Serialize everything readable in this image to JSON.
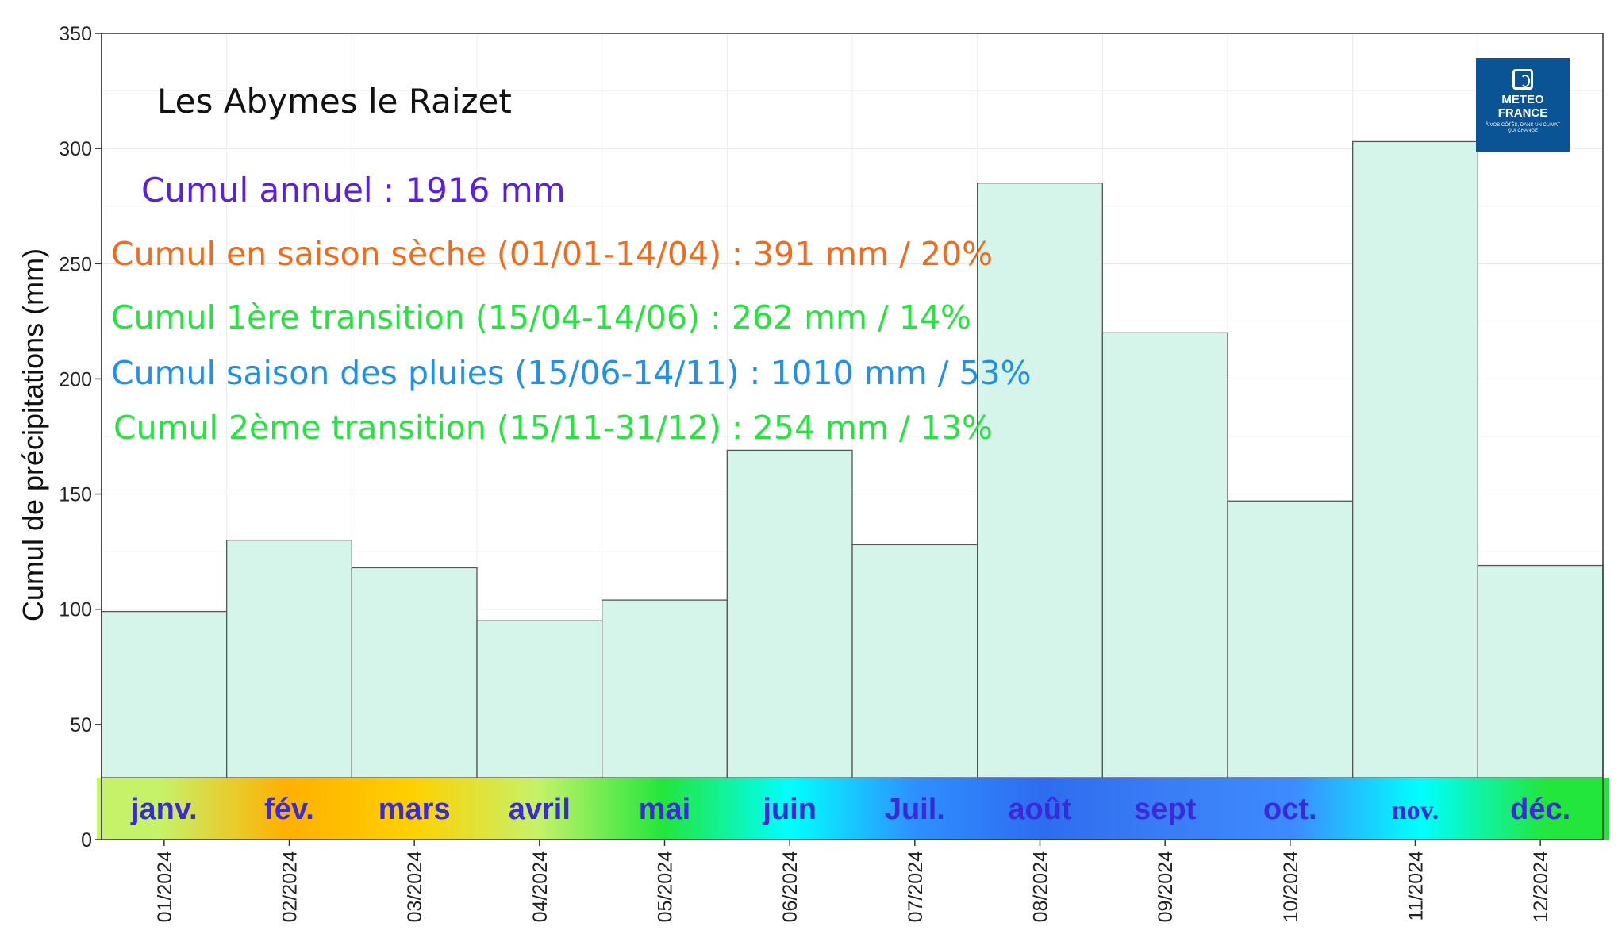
{
  "chart_data": {
    "type": "bar",
    "title": "Les Abymes le Raizet",
    "ylabel": "Cumul de précipitations (mm)",
    "xlabel": "",
    "ylim": [
      0,
      350
    ],
    "yticks": [
      0,
      50,
      100,
      150,
      200,
      250,
      300,
      350
    ],
    "grid": true,
    "categories": [
      "01/2024",
      "02/2024",
      "03/2024",
      "04/2024",
      "05/2024",
      "06/2024",
      "07/2024",
      "08/2024",
      "09/2024",
      "10/2024",
      "11/2024",
      "12/2024"
    ],
    "values": [
      99,
      130,
      118,
      95,
      104,
      169,
      128,
      285,
      220,
      147,
      303,
      119
    ],
    "bar_color": "#d6f5ea",
    "month_band": {
      "labels": [
        "janv.",
        "fév.",
        "mars",
        "avril",
        "mai",
        "juin",
        "Juil.",
        "août",
        "sept",
        "oct.",
        "nov.",
        "déc."
      ],
      "label_color": "#3a2bd6",
      "gradient_colors": [
        "#c6f26a",
        "#ffb000",
        "#ffd000",
        "#c6f26a",
        "#22e63c",
        "#00ffff",
        "#2e8fff",
        "#2e6cf0",
        "#3a7df5",
        "#3d8bff",
        "#00ffff",
        "#22e63c"
      ]
    },
    "annotations": [
      {
        "text": "Cumul annuel : 1916 mm",
        "color": "#5a1ee6"
      },
      {
        "text": "Cumul en saison sèche (01/01-14/04) : 391 mm / 20%",
        "color": "#f26b1a"
      },
      {
        "text": "Cumul 1ère transition (15/04-14/06) : 262 mm / 14%",
        "color": "#22e63c"
      },
      {
        "text": "Cumul saison des pluies (15/06-14/11) : 1010 mm / 53%",
        "color": "#1e90f0"
      },
      {
        "text": "Cumul 2ème transition (15/11-31/12) : 254 mm / 13%",
        "color": "#22e63c"
      }
    ]
  },
  "logo": {
    "line1": "METEO",
    "line2": "FRANCE",
    "tagline": "À VOS CÔTÉS, DANS UN CLIMAT QUI CHANGE",
    "color": "#0a5394"
  }
}
